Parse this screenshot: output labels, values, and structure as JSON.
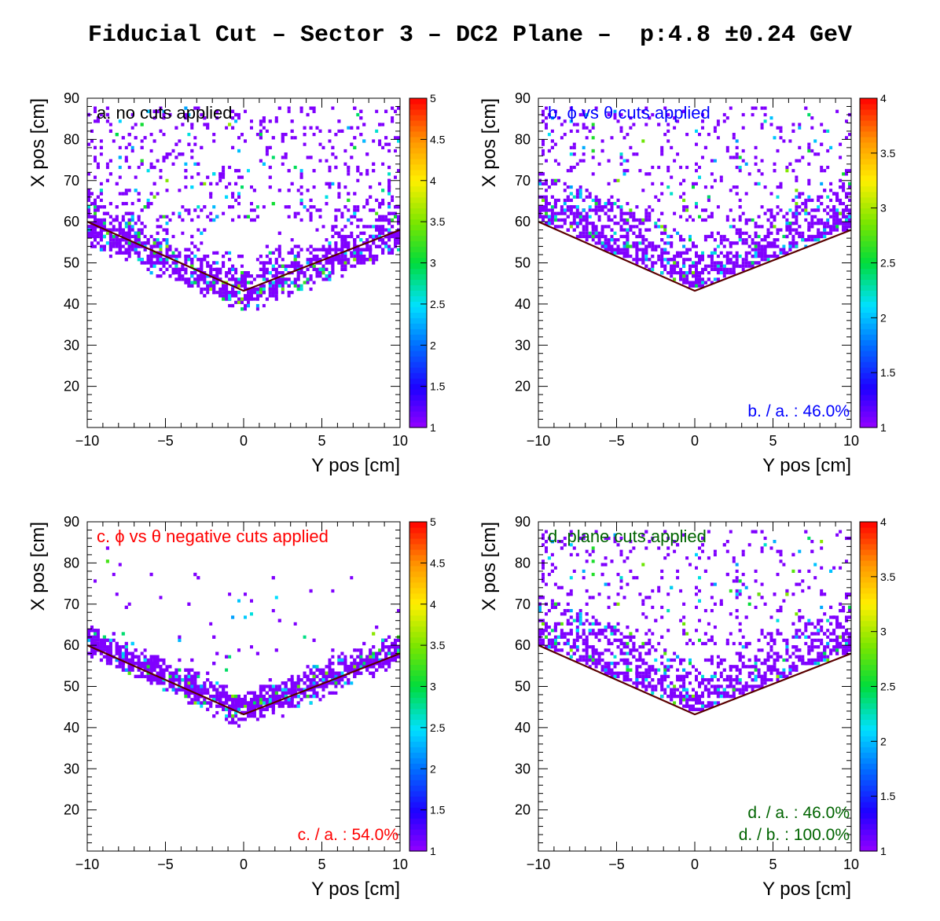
{
  "title": "Fiducial Cut – Sector 3 – DC2 Plane –  p:4.8 ±0.24 GeV",
  "chart_data": [
    {
      "type": "heatmap",
      "panel": "a",
      "label": "a. no cuts applied",
      "label_color": "#000000",
      "ratio_texts": [],
      "ratio_color": "#000000",
      "xlabel": "Y pos [cm]",
      "ylabel": "X pos [cm]",
      "xlim": [
        -10,
        10
      ],
      "ylim": [
        10,
        90
      ],
      "xticks": [
        "−10",
        "−5",
        "0",
        "5",
        "10"
      ],
      "xtick_values": [
        -10,
        -5,
        0,
        5,
        10
      ],
      "yticks": [
        "20",
        "30",
        "40",
        "50",
        "60",
        "70",
        "80",
        "90"
      ],
      "ytick_values": [
        20,
        30,
        40,
        50,
        60,
        70,
        80,
        90
      ],
      "zlim": [
        1,
        5
      ],
      "zticks": [
        "1",
        "1.5",
        "2",
        "2.5",
        "3",
        "3.5",
        "4",
        "4.5",
        "5"
      ],
      "ztick_values": [
        1,
        1.5,
        2,
        2.5,
        3,
        3.5,
        4,
        4.5,
        5
      ],
      "cut_line": [
        [
          -10,
          60
        ],
        [
          0,
          43.2
        ],
        [
          10,
          58
        ]
      ],
      "cut_line_color": "#5a0000",
      "distribution": "all",
      "density": 1.0
    },
    {
      "type": "heatmap",
      "panel": "b",
      "label": "b. ϕ vs θ cuts applied",
      "label_color": "#0000ff",
      "ratio_texts": [
        "b. / a. : 46.0%"
      ],
      "ratio_color": "#0000ff",
      "xlabel": "Y pos [cm]",
      "ylabel": "X pos [cm]",
      "xlim": [
        -10,
        10
      ],
      "ylim": [
        10,
        90
      ],
      "xticks": [
        "−10",
        "−5",
        "0",
        "5",
        "10"
      ],
      "xtick_values": [
        -10,
        -5,
        0,
        5,
        10
      ],
      "yticks": [
        "20",
        "30",
        "40",
        "50",
        "60",
        "70",
        "80",
        "90"
      ],
      "ytick_values": [
        20,
        30,
        40,
        50,
        60,
        70,
        80,
        90
      ],
      "zlim": [
        1,
        4
      ],
      "zticks": [
        "1",
        "1.5",
        "2",
        "2.5",
        "3",
        "3.5",
        "4"
      ],
      "ztick_values": [
        1,
        1.5,
        2,
        2.5,
        3,
        3.5,
        4
      ],
      "cut_line": [
        [
          -10,
          60
        ],
        [
          0,
          43.2
        ],
        [
          10,
          58
        ]
      ],
      "cut_line_color": "#5a0000",
      "distribution": "above",
      "density": 0.6
    },
    {
      "type": "heatmap",
      "panel": "c",
      "label": "c. ϕ vs θ negative cuts applied",
      "label_color": "#ff0000",
      "ratio_texts": [
        "c. / a. : 54.0%"
      ],
      "ratio_color": "#ff0000",
      "xlabel": "Y pos [cm]",
      "ylabel": "X pos [cm]",
      "xlim": [
        -10,
        10
      ],
      "ylim": [
        10,
        90
      ],
      "xticks": [
        "−10",
        "−5",
        "0",
        "5",
        "10"
      ],
      "xtick_values": [
        -10,
        -5,
        0,
        5,
        10
      ],
      "yticks": [
        "20",
        "30",
        "40",
        "50",
        "60",
        "70",
        "80",
        "90"
      ],
      "ytick_values": [
        20,
        30,
        40,
        50,
        60,
        70,
        80,
        90
      ],
      "zlim": [
        1,
        5
      ],
      "zticks": [
        "1",
        "1.5",
        "2",
        "2.5",
        "3",
        "3.5",
        "4",
        "4.5",
        "5"
      ],
      "ztick_values": [
        1,
        1.5,
        2,
        2.5,
        3,
        3.5,
        4,
        4.5,
        5
      ],
      "cut_line": [
        [
          -10,
          60
        ],
        [
          0,
          43.2
        ],
        [
          10,
          58
        ]
      ],
      "cut_line_color": "#5a0000",
      "distribution": "band",
      "density": 0.85
    },
    {
      "type": "heatmap",
      "panel": "d",
      "label": "d. plane cuts applied",
      "label_color": "#006400",
      "ratio_texts": [
        "d. / a. : 46.0%",
        "d. / b. : 100.0%"
      ],
      "ratio_color": "#006400",
      "xlabel": "Y pos [cm]",
      "ylabel": "X pos [cm]",
      "xlim": [
        -10,
        10
      ],
      "ylim": [
        10,
        90
      ],
      "xticks": [
        "−10",
        "−5",
        "0",
        "5",
        "10"
      ],
      "xtick_values": [
        -10,
        -5,
        0,
        5,
        10
      ],
      "yticks": [
        "20",
        "30",
        "40",
        "50",
        "60",
        "70",
        "80",
        "90"
      ],
      "ytick_values": [
        20,
        30,
        40,
        50,
        60,
        70,
        80,
        90
      ],
      "zlim": [
        1,
        4
      ],
      "zticks": [
        "1",
        "1.5",
        "2",
        "2.5",
        "3",
        "3.5",
        "4"
      ],
      "ztick_values": [
        1,
        1.5,
        2,
        2.5,
        3,
        3.5,
        4
      ],
      "cut_line": [
        [
          -10,
          60
        ],
        [
          0,
          43.2
        ],
        [
          10,
          58
        ]
      ],
      "cut_line_color": "#5a0000",
      "distribution": "above",
      "density": 0.6
    }
  ]
}
